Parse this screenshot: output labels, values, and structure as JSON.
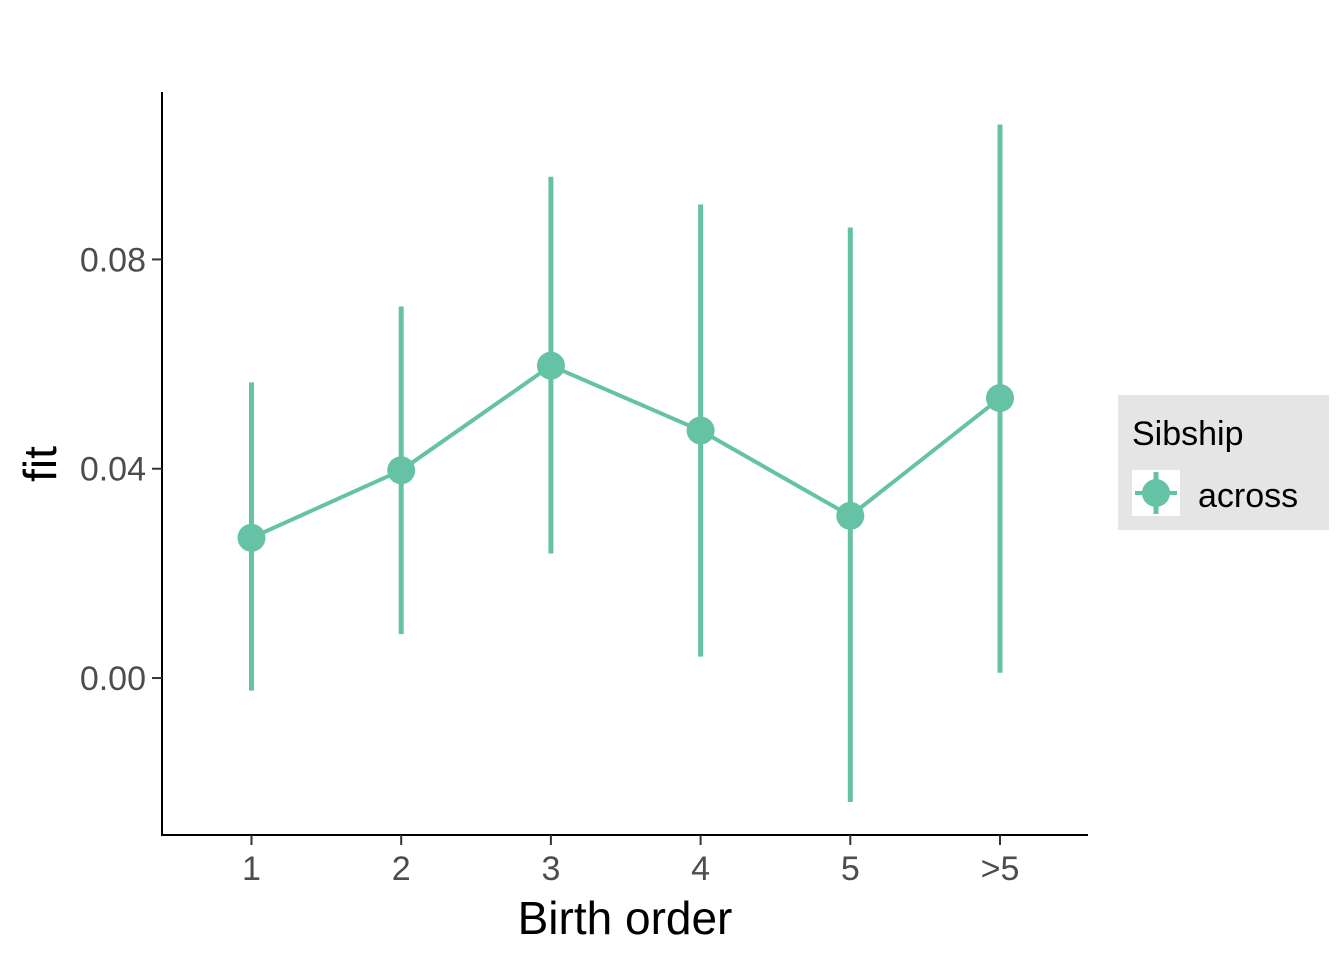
{
  "chart_data": {
    "type": "line",
    "xlabel": "Birth order",
    "ylabel": "fit",
    "categories": [
      "1",
      "2",
      "3",
      "4",
      "5",
      ">5"
    ],
    "ylim": [
      -0.03,
      0.112
    ],
    "yticks": [
      0.0,
      0.04,
      0.08
    ],
    "ytick_labels": [
      "0.00",
      "0.04",
      "0.08"
    ],
    "grid": false,
    "legend": {
      "title": "Sibship",
      "position": "right",
      "entries": [
        {
          "label": "across",
          "color": "#66c2a5"
        }
      ]
    },
    "series": [
      {
        "name": "across",
        "color": "#66c2a5",
        "values": [
          0.0268,
          0.0397,
          0.0597,
          0.0473,
          0.031,
          0.0535
        ],
        "lower": [
          -0.0024,
          0.0084,
          0.0238,
          0.0041,
          -0.0237,
          0.001
        ],
        "upper": [
          0.0565,
          0.071,
          0.0958,
          0.0905,
          0.0861,
          0.1058
        ]
      }
    ]
  },
  "colors": {
    "series": "#66c2a5",
    "axis": "#000000",
    "tick_text": "#4d4d4d",
    "legend_bg": "#e5e5e5"
  }
}
